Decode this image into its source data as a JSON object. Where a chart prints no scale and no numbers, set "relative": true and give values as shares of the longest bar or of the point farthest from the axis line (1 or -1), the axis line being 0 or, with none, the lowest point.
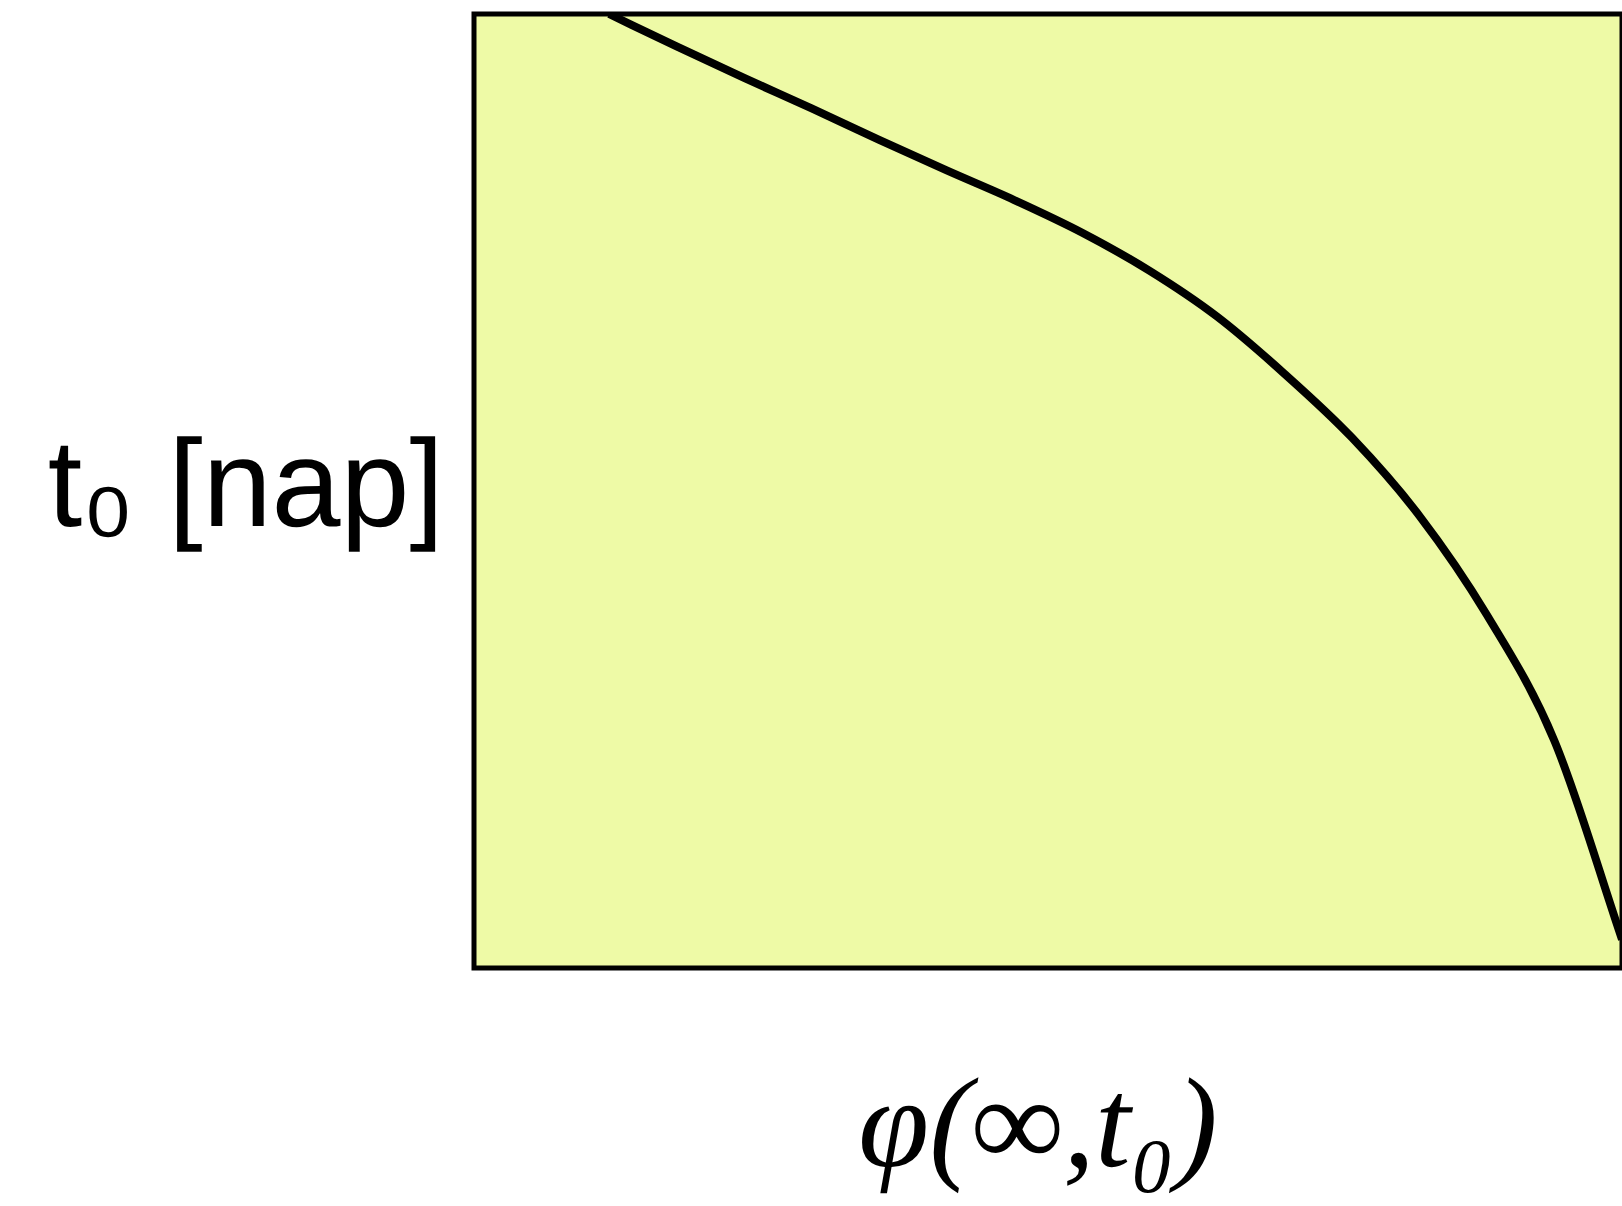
{
  "chart_data": {
    "type": "line",
    "xlabel": "φ(∞,t₀)",
    "ylabel": "t₀ [nap]",
    "categories": [
      null,
      null,
      null,
      null,
      null,
      null,
      null,
      null,
      null,
      null,
      null,
      null,
      null,
      null,
      null,
      null,
      null,
      null
    ],
    "series": [
      {
        "color": "#000000",
        "values": [
          null,
          null,
          1,
          0.966,
          0.933,
          0.901,
          0.868,
          0.836,
          0.805,
          0.771,
          0.731,
          0.683,
          0.623,
          0.556,
          0.474,
          0.37,
          0.238,
          0.03
        ]
      }
    ],
    "relative": true,
    "tick_labels": false,
    "marker": "none",
    "line_style": "solid"
  }
}
